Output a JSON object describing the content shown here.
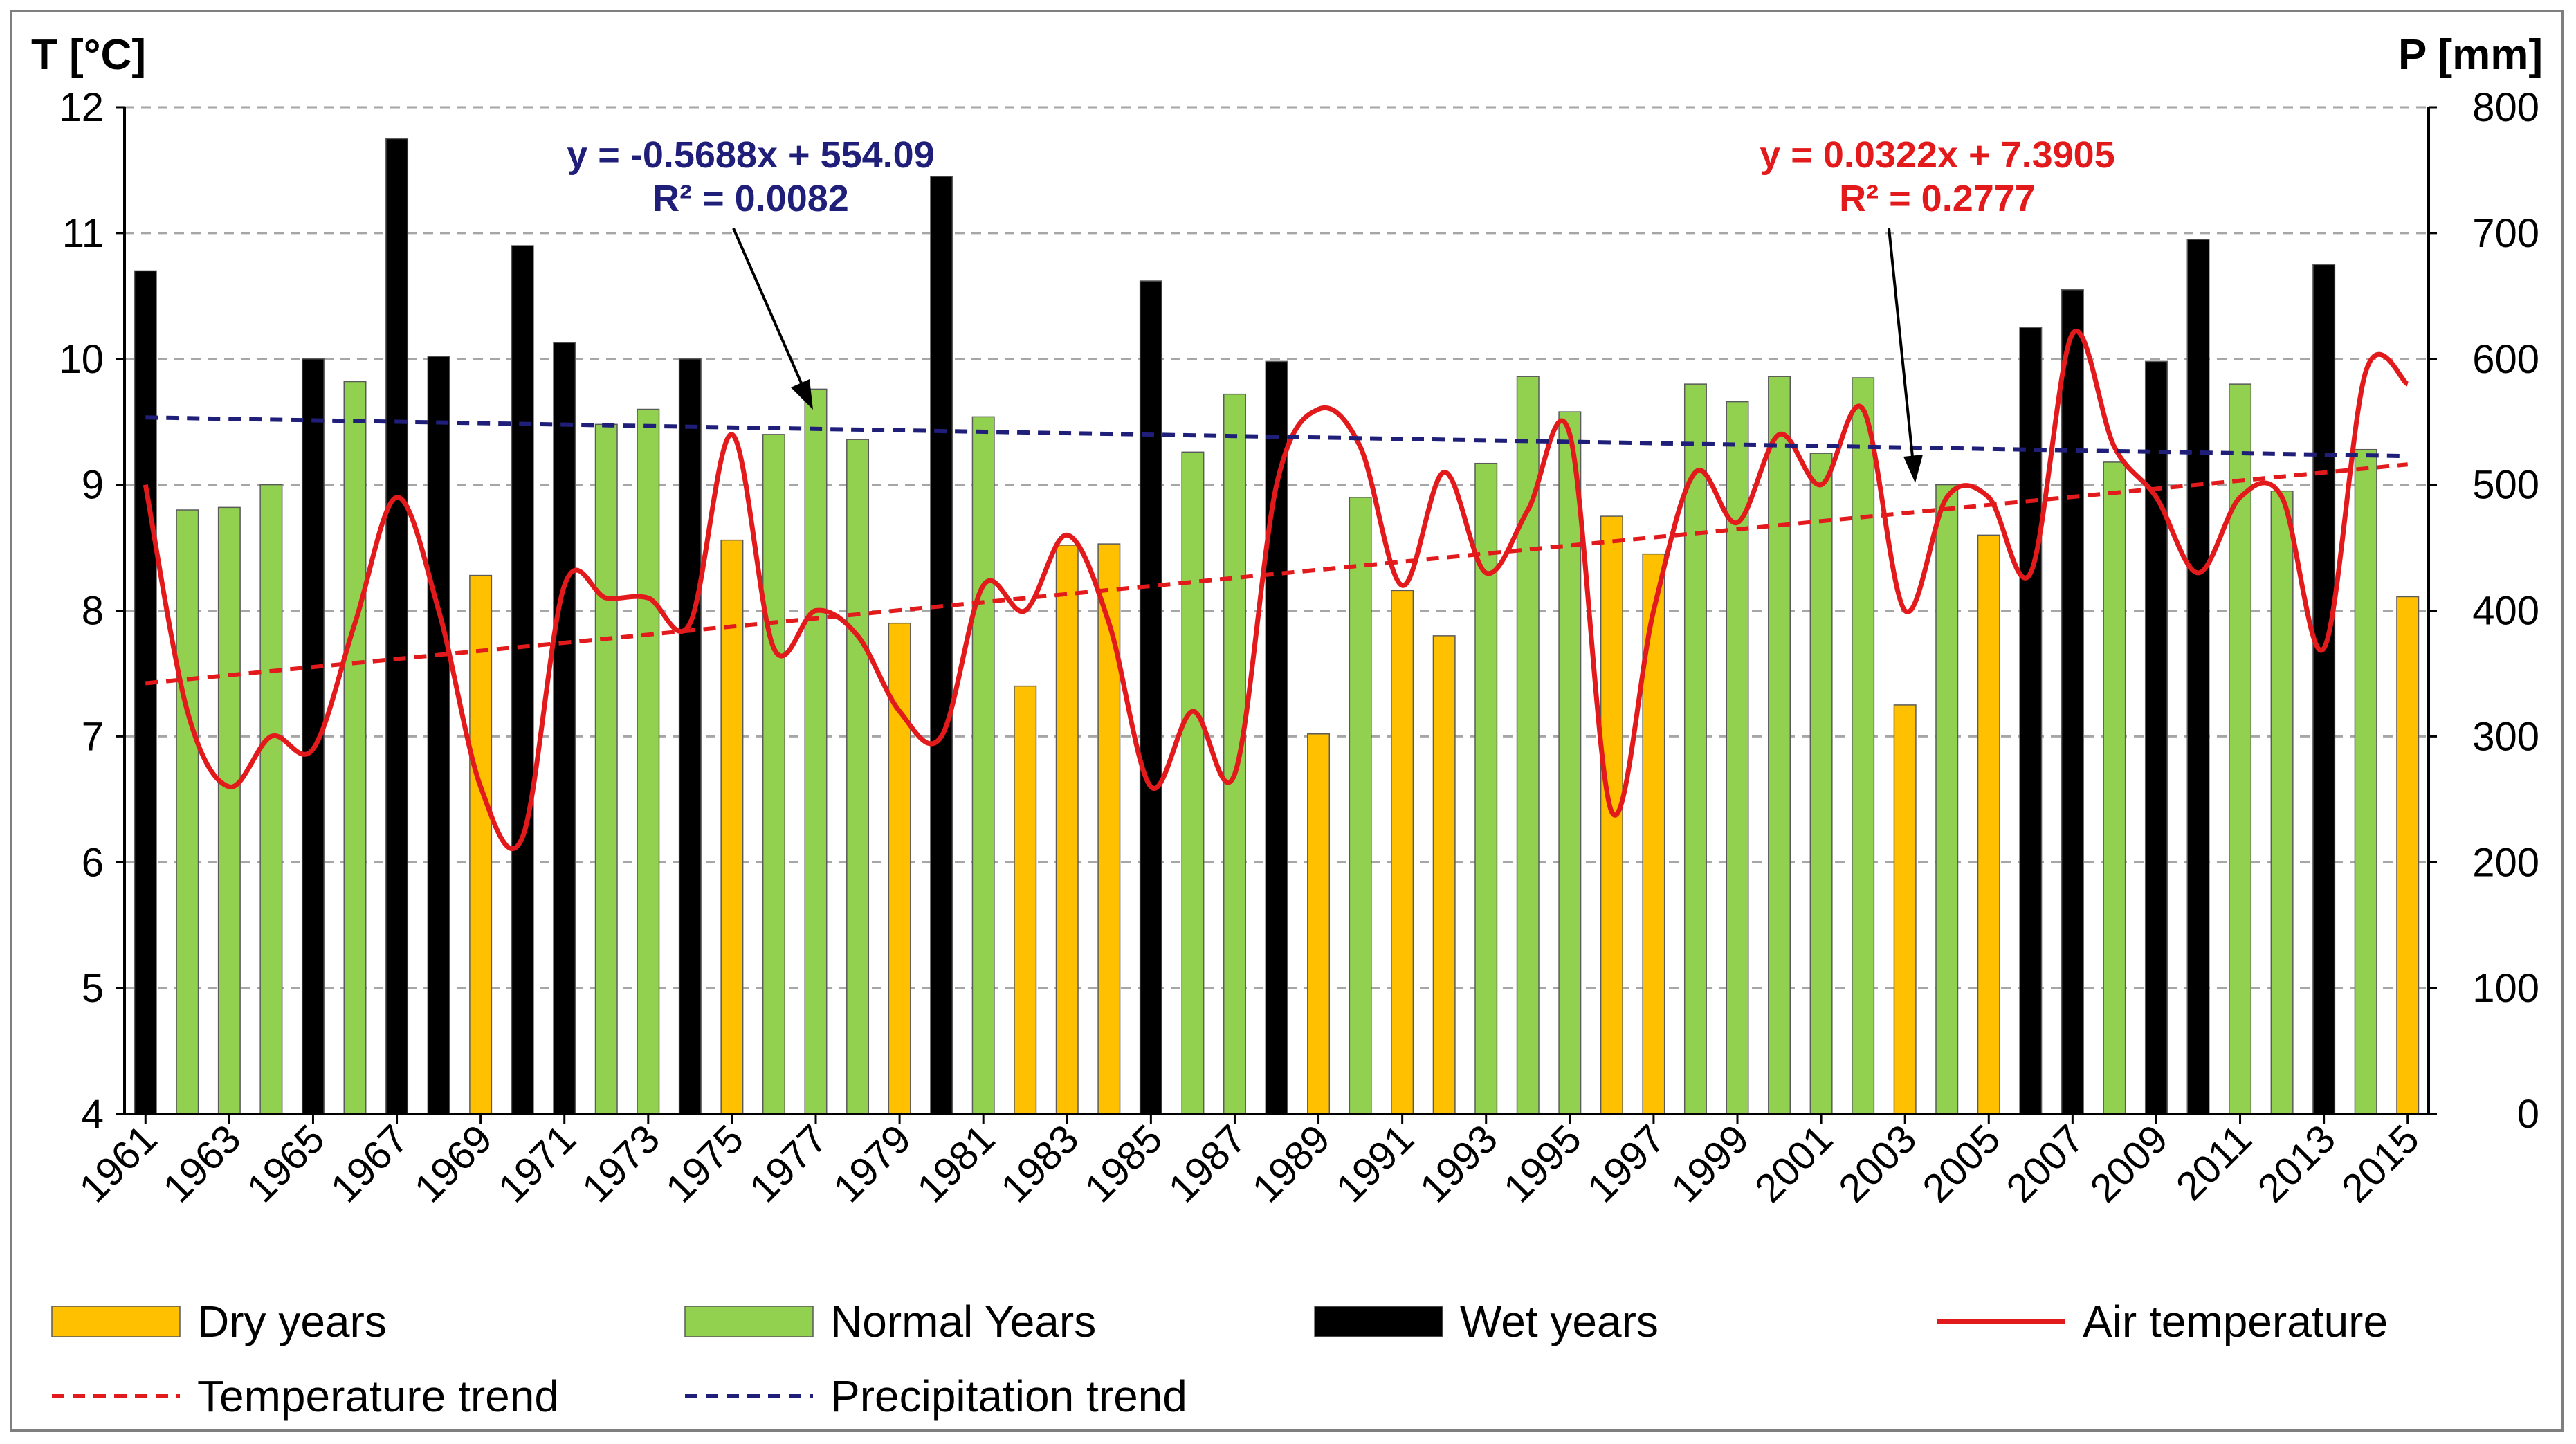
{
  "chart_data": {
    "type": "bar",
    "title": "",
    "y_left_label": "T [°C]",
    "y_right_label": "P [mm]",
    "y_left_range": [
      4,
      12
    ],
    "y_right_range": [
      0,
      800
    ],
    "y_left_ticks": [
      "12",
      "11",
      "10",
      "9",
      "8",
      "7",
      "6",
      "5",
      "4"
    ],
    "y_right_ticks": [
      "800",
      "700",
      "600",
      "500",
      "400",
      "300",
      "200",
      "100",
      "0"
    ],
    "grid": "horizontal dashed",
    "years": [
      1961,
      1962,
      1963,
      1964,
      1965,
      1966,
      1967,
      1968,
      1969,
      1970,
      1971,
      1972,
      1973,
      1974,
      1975,
      1976,
      1977,
      1978,
      1979,
      1980,
      1981,
      1982,
      1983,
      1984,
      1985,
      1986,
      1987,
      1988,
      1989,
      1990,
      1991,
      1992,
      1993,
      1994,
      1995,
      1996,
      1997,
      1998,
      1999,
      2000,
      2001,
      2002,
      2003,
      2004,
      2005,
      2006,
      2007,
      2008,
      2009,
      2010,
      2011,
      2012,
      2013,
      2014,
      2015
    ],
    "x_tick_labels": [
      "1961",
      "1963",
      "1965",
      "1967",
      "1969",
      "1971",
      "1973",
      "1975",
      "1977",
      "1979",
      "1981",
      "1983",
      "1985",
      "1987",
      "1989",
      "1991",
      "1993",
      "1995",
      "1997",
      "1999",
      "2001",
      "2003",
      "2005",
      "2007",
      "2009",
      "2011",
      "2013",
      "2015"
    ],
    "precipitation": [
      670,
      480,
      482,
      500,
      600,
      582,
      775,
      602,
      428,
      690,
      613,
      548,
      560,
      600,
      456,
      540,
      576,
      536,
      390,
      745,
      554,
      340,
      452,
      453,
      662,
      526,
      572,
      598,
      302,
      490,
      416,
      380,
      517,
      586,
      558,
      475,
      445,
      580,
      566,
      586,
      525,
      585,
      325,
      500,
      460,
      625,
      655,
      518,
      598,
      695,
      580,
      495,
      675,
      528,
      411
    ],
    "year_class": [
      "wet",
      "normal",
      "normal",
      "normal",
      "wet",
      "normal",
      "wet",
      "wet",
      "dry",
      "wet",
      "wet",
      "normal",
      "normal",
      "wet",
      "dry",
      "normal",
      "normal",
      "normal",
      "dry",
      "wet",
      "normal",
      "dry",
      "dry",
      "dry",
      "wet",
      "normal",
      "normal",
      "wet",
      "dry",
      "normal",
      "dry",
      "dry",
      "normal",
      "normal",
      "normal",
      "dry",
      "dry",
      "normal",
      "normal",
      "normal",
      "normal",
      "normal",
      "dry",
      "normal",
      "dry",
      "wet",
      "wet",
      "normal",
      "wet",
      "wet",
      "normal",
      "normal",
      "wet",
      "normal",
      "dry"
    ],
    "class_colors": {
      "dry": "#ffc000",
      "normal": "#92d050",
      "wet": "#000000"
    },
    "air_temperature": [
      9.0,
      7.2,
      6.6,
      7.0,
      6.9,
      7.9,
      8.9,
      8.0,
      6.6,
      6.2,
      8.2,
      8.1,
      8.1,
      7.9,
      9.4,
      7.7,
      8.0,
      7.8,
      7.2,
      7.0,
      8.2,
      8.0,
      8.6,
      7.9,
      6.6,
      7.2,
      6.7,
      9.0,
      9.6,
      9.3,
      8.2,
      9.1,
      8.3,
      8.8,
      9.4,
      6.4,
      8.0,
      9.1,
      8.7,
      9.4,
      9.0,
      9.6,
      8.0,
      8.9,
      8.9,
      8.3,
      10.2,
      9.3,
      8.9,
      8.3,
      8.9,
      8.9,
      7.7,
      9.9,
      9.8
    ],
    "temperature_trend": {
      "equation": "y = 0.0322x + 7.3905",
      "r2": "R² = 0.2777",
      "slope": 0.0322,
      "intercept": 7.3905
    },
    "precipitation_trend": {
      "equation": "y = -0.5688x + 554.09",
      "r2": "R² = 0.0082",
      "slope": -0.5688,
      "intercept": 554.09
    },
    "colors": {
      "temperature": "#e31a1c",
      "precip_trend": "#1f1f7a",
      "grid": "#a6a6a6",
      "axis": "#000000"
    },
    "legend": [
      {
        "key": "dry",
        "label": "Dry years",
        "symbol": "bar",
        "color": "#ffc000"
      },
      {
        "key": "normal",
        "label": "Normal Years",
        "symbol": "bar",
        "color": "#92d050"
      },
      {
        "key": "wet",
        "label": "Wet years",
        "symbol": "bar",
        "color": "#000000"
      },
      {
        "key": "air",
        "label": "Air temperature",
        "symbol": "line",
        "color": "#e31a1c"
      },
      {
        "key": "ttrend",
        "label": "Temperature trend",
        "symbol": "dash",
        "color": "#e31a1c"
      },
      {
        "key": "ptrend",
        "label": "Precipitation trend",
        "symbol": "dash",
        "color": "#1f1f7a"
      }
    ]
  }
}
